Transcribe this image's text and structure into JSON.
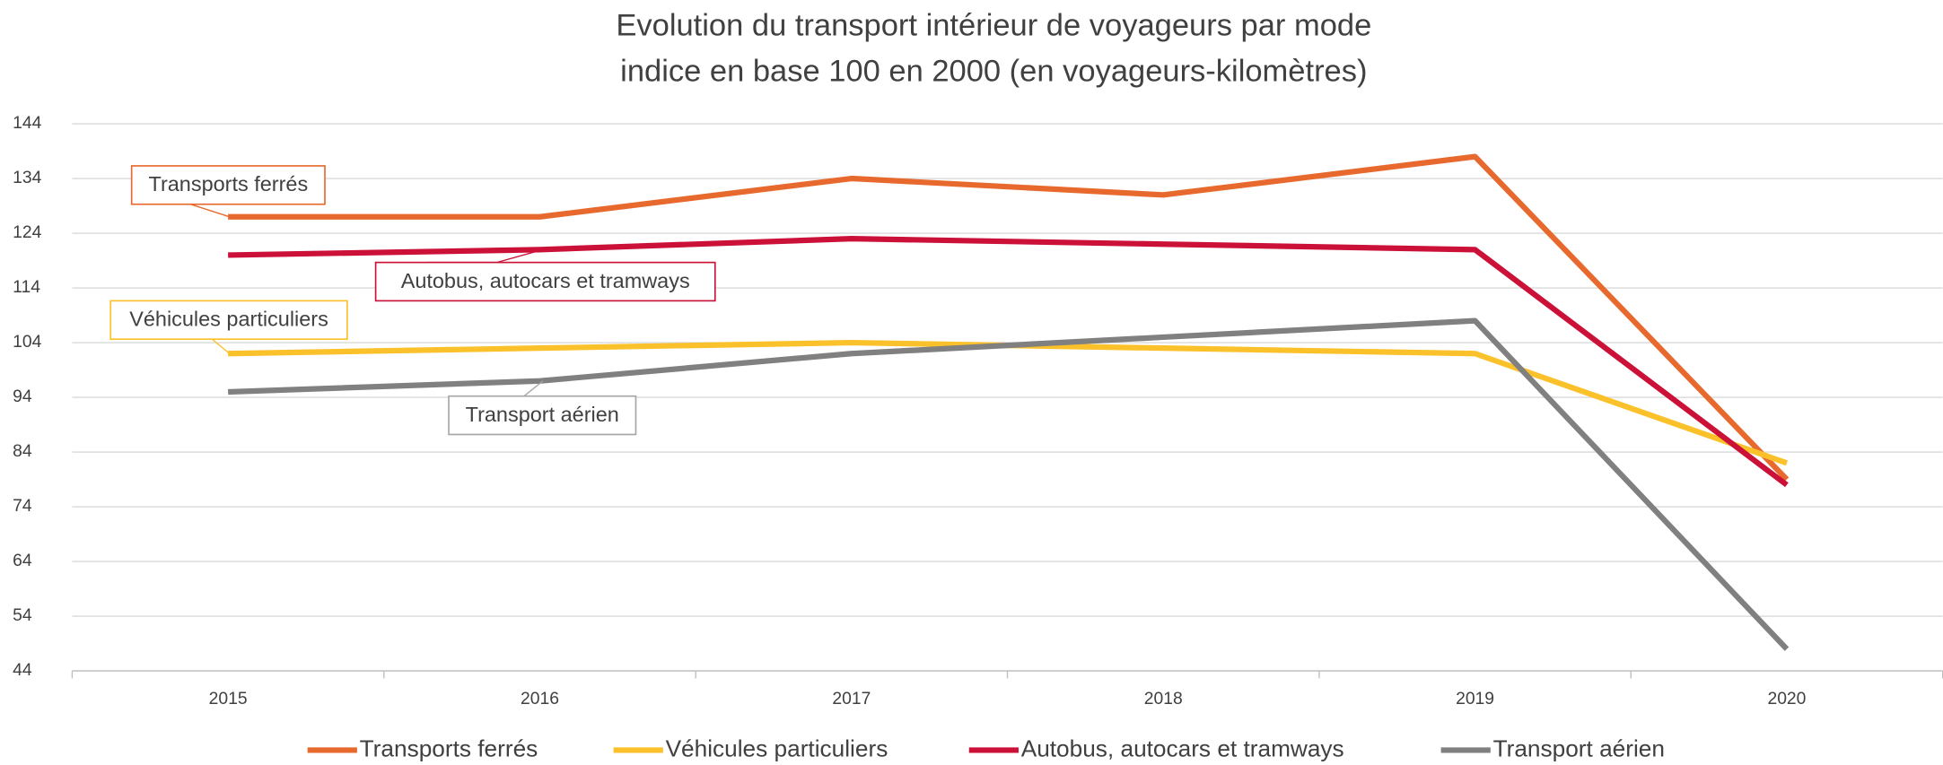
{
  "chart_data": {
    "type": "line",
    "title": "Evolution du transport intérieur de voyageurs par mode",
    "subtitle": "indice en base 100 en 2000 (en voyageurs-kilomètres)",
    "categories": [
      "2015",
      "2016",
      "2017",
      "2018",
      "2019",
      "2020"
    ],
    "series": [
      {
        "name": "Transports ferrés",
        "color": "#e8692e",
        "values": [
          127,
          127,
          134,
          131,
          138,
          79
        ]
      },
      {
        "name": "Véhicules particuliers",
        "color": "#fbc12a",
        "values": [
          102,
          103,
          104,
          103,
          102,
          82
        ]
      },
      {
        "name": "Autobus, autocars et tramways",
        "color": "#cc1138",
        "values": [
          120,
          121,
          123,
          122,
          121,
          78
        ]
      },
      {
        "name": "Transport aérien",
        "color": "#808080",
        "values": [
          95,
          97,
          102,
          105,
          108,
          48
        ]
      }
    ],
    "annotations": [
      {
        "text": "Transports ferrés",
        "color": "#e8692e"
      },
      {
        "text": "Autobus, autocars et tramways",
        "color": "#cc1138"
      },
      {
        "text": "Véhicules particuliers",
        "color": "#fbc12a"
      },
      {
        "text": "Transport aérien",
        "color": "#a6a6a6"
      }
    ],
    "ylim": [
      44,
      144
    ],
    "yticks": [
      44,
      54,
      64,
      74,
      84,
      94,
      104,
      114,
      124,
      134,
      144
    ],
    "grid": true,
    "legend": "bottom"
  }
}
